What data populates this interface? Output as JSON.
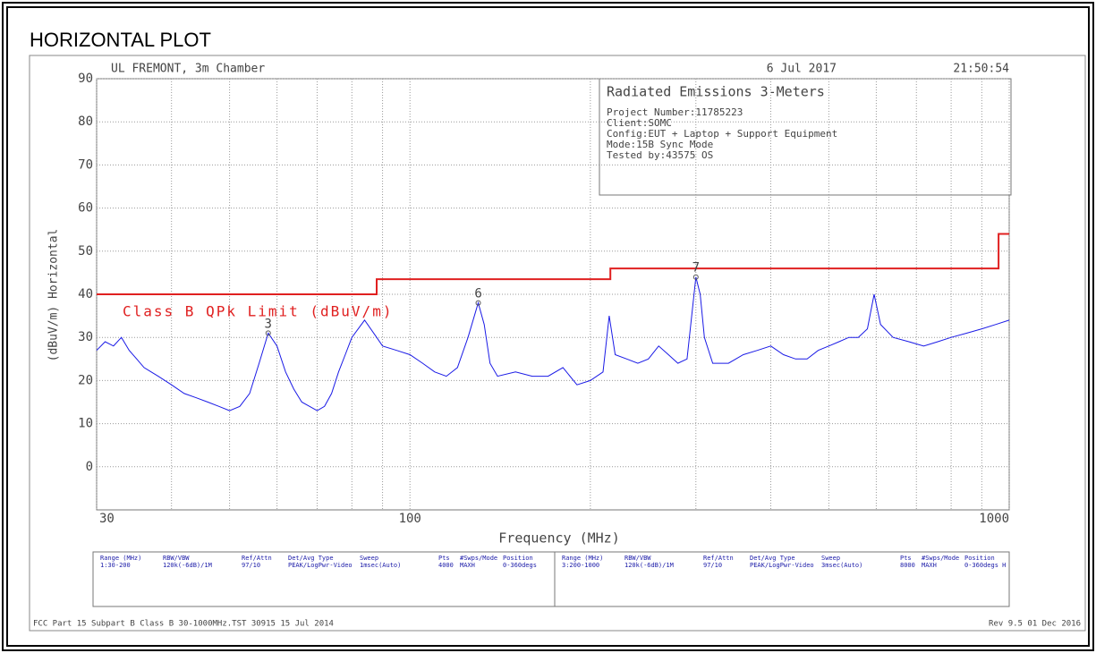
{
  "header": {
    "title": "HORIZONTAL PLOT"
  },
  "chart_data": {
    "type": "line",
    "log_x": true,
    "site": "UL FREMONT, 3m Chamber",
    "date": "6 Jul 2017",
    "time": "21:50:54",
    "info": {
      "title": "Radiated Emissions 3-Meters",
      "lines": [
        "Project Number:11785223",
        "Client:SOMC",
        "Config:EUT + Laptop + Support Equipment",
        "Mode:15B Sync Mode",
        "Tested by:43575 OS"
      ]
    },
    "xlabel": "Frequency (MHz)",
    "ylabel": "(dBuV/m) Horizontal",
    "xlim": [
      30,
      1000
    ],
    "ylim": [
      -10,
      90
    ],
    "xticks": [
      30,
      100,
      1000
    ],
    "xminorticks": [
      40,
      50,
      60,
      70,
      80,
      90,
      200,
      300,
      400,
      500,
      600,
      700,
      800,
      900
    ],
    "yticks": [
      0,
      10,
      20,
      30,
      40,
      50,
      60,
      70,
      80,
      90
    ],
    "grid": true,
    "series": [
      {
        "color": "#1a1ae6",
        "x": [
          30,
          31,
          32,
          33,
          34,
          35,
          36,
          37,
          38,
          40,
          42,
          44,
          46,
          48,
          50,
          52,
          54,
          56,
          58,
          60,
          62,
          64,
          66,
          68,
          70,
          72,
          74,
          76,
          78,
          80,
          84,
          88,
          90,
          95,
          100,
          105,
          110,
          115,
          120,
          125,
          130,
          133,
          136,
          140,
          150,
          160,
          170,
          180,
          190,
          200,
          210,
          215,
          220,
          230,
          240,
          250,
          260,
          270,
          280,
          290,
          300,
          305,
          310,
          320,
          340,
          360,
          380,
          400,
          420,
          440,
          460,
          480,
          500,
          520,
          540,
          560,
          580,
          595,
          610,
          640,
          680,
          720,
          760,
          800,
          850,
          900,
          950,
          1000
        ],
        "values": [
          27,
          29,
          28,
          30,
          27,
          25,
          23,
          22,
          21,
          19,
          17,
          16,
          15,
          14,
          13,
          14,
          17,
          24,
          31,
          28,
          22,
          18,
          15,
          14,
          13,
          14,
          17,
          22,
          26,
          30,
          34,
          30,
          28,
          27,
          26,
          24,
          22,
          21,
          23,
          30,
          38,
          33,
          24,
          21,
          22,
          21,
          21,
          23,
          19,
          20,
          22,
          35,
          26,
          25,
          24,
          25,
          28,
          26,
          24,
          25,
          44,
          40,
          30,
          24,
          24,
          26,
          27,
          28,
          26,
          25,
          25,
          27,
          28,
          29,
          30,
          30,
          32,
          40,
          33,
          30,
          29,
          28,
          29,
          30,
          31,
          32,
          33,
          34
        ]
      },
      {
        "name": "Class B QPk Limit (dBuV/m)",
        "color": "#e02020",
        "x": [
          30,
          88,
          88,
          216,
          216,
          960,
          960,
          1000
        ],
        "values": [
          40,
          40,
          43.5,
          43.5,
          46,
          46,
          54,
          54
        ]
      }
    ],
    "markers": [
      {
        "label": "3",
        "x": 58,
        "value": 31
      },
      {
        "label": "6",
        "x": 130,
        "value": 38
      },
      {
        "label": "7",
        "x": 300,
        "value": 44
      }
    ],
    "table": {
      "headers": [
        "Range (MHz)",
        "RBW/VBW",
        "Ref/Attn",
        "Det/Avg Type",
        "Sweep",
        "Pts",
        "#Swps/Mode",
        "Position"
      ],
      "rows": [
        [
          "1:30-200",
          "120k(-6dB)/1M",
          "97/10",
          "PEAK/LogPwr-Video",
          "1msec(Auto)",
          "4000",
          "MAXH",
          "0-360degs"
        ],
        [
          "3:200-1000",
          "120k(-6dB)/1M",
          "97/10",
          "PEAK/LogPwr-Video",
          "3msec(Auto)",
          "8000",
          "MAXH",
          "0-360degs H"
        ]
      ]
    },
    "footer_left": "FCC Part 15 Subpart B Class B 30-1000MHz.TST 30915 15 Jul 2014",
    "footer_right": "Rev 9.5 01 Dec 2016"
  }
}
